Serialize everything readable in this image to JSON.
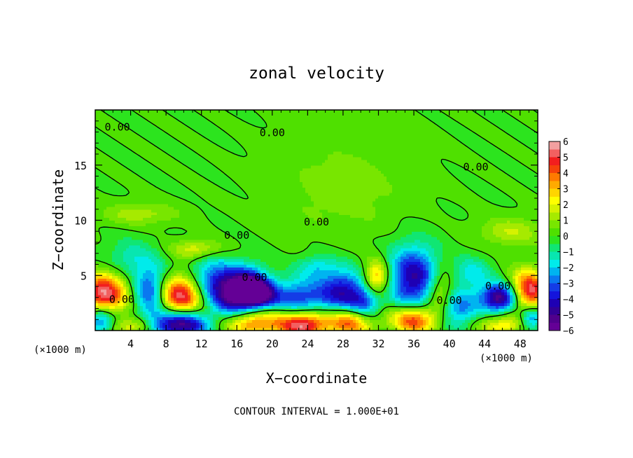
{
  "chart_data": {
    "type": "heatmap",
    "title": "zonal velocity",
    "xlabel": "X−coordinate",
    "ylabel": "Z−coordinate",
    "x_unit_left": "(×1000 m)",
    "x_unit_right": "(×1000 m)",
    "footer": "CONTOUR INTERVAL = 1.000E+01",
    "xlim": [
      0,
      50
    ],
    "ylim": [
      0,
      20
    ],
    "x_ticks": [
      4,
      8,
      12,
      16,
      20,
      24,
      28,
      32,
      36,
      40,
      44,
      48
    ],
    "x_tick_labels": [
      "4",
      "8",
      "12",
      "16",
      "20",
      "24",
      "28",
      "32",
      "36",
      "40",
      "44",
      "48"
    ],
    "y_ticks": [
      5,
      10,
      15
    ],
    "y_tick_labels": [
      "5",
      "10",
      "15"
    ],
    "colorbar": {
      "range": [
        -6,
        6
      ],
      "labels": [
        "6",
        "5",
        "4",
        "3",
        "2",
        "1",
        "0",
        "−1",
        "−2",
        "−3",
        "−4",
        "−5",
        "−6"
      ],
      "levels": [
        {
          "lo": 5.5,
          "hi": 6,
          "color": "#f2a0a0"
        },
        {
          "lo": 5,
          "hi": 5.5,
          "color": "#f26060"
        },
        {
          "lo": 4.5,
          "hi": 5,
          "color": "#f21e1e"
        },
        {
          "lo": 4,
          "hi": 4.5,
          "color": "#f5420a"
        },
        {
          "lo": 3.5,
          "hi": 4,
          "color": "#ff7a00"
        },
        {
          "lo": 3,
          "hi": 3.5,
          "color": "#ffaa00"
        },
        {
          "lo": 2.5,
          "hi": 3,
          "color": "#ffd500"
        },
        {
          "lo": 2,
          "hi": 2.5,
          "color": "#ffff00"
        },
        {
          "lo": 1.5,
          "hi": 2,
          "color": "#d6f200"
        },
        {
          "lo": 1,
          "hi": 1.5,
          "color": "#a6ea00"
        },
        {
          "lo": 0.5,
          "hi": 1,
          "color": "#78e600"
        },
        {
          "lo": 0,
          "hi": 0.5,
          "color": "#4fe000"
        },
        {
          "lo": -0.5,
          "hi": 0,
          "color": "#2ce41e"
        },
        {
          "lo": -1,
          "hi": -0.5,
          "color": "#10e673"
        },
        {
          "lo": -1.5,
          "hi": -1,
          "color": "#08e6b0"
        },
        {
          "lo": -2,
          "hi": -1.5,
          "color": "#00ebeb"
        },
        {
          "lo": -2.5,
          "hi": -2,
          "color": "#00b4f0"
        },
        {
          "lo": -3,
          "hi": -2.5,
          "color": "#0a78f0"
        },
        {
          "lo": -3.5,
          "hi": -3,
          "color": "#143ce6"
        },
        {
          "lo": -4,
          "hi": -3.5,
          "color": "#1414dc"
        },
        {
          "lo": -4.5,
          "hi": -4,
          "color": "#1e00b4"
        },
        {
          "lo": -5,
          "hi": -4.5,
          "color": "#320096"
        },
        {
          "lo": -5.5,
          "hi": -5,
          "color": "#50008c"
        },
        {
          "lo": -6,
          "hi": -5.5,
          "color": "#640096"
        }
      ]
    },
    "contour_label": "0.00",
    "contour_label_positions": [
      {
        "x": 2.5,
        "y": 18.4
      },
      {
        "x": 20,
        "y": 17.9
      },
      {
        "x": 43,
        "y": 14.8
      },
      {
        "x": 16,
        "y": 8.6
      },
      {
        "x": 25,
        "y": 9.8
      },
      {
        "x": 18,
        "y": 4.8
      },
      {
        "x": 3,
        "y": 2.8
      },
      {
        "x": 40,
        "y": 2.7
      },
      {
        "x": 45.5,
        "y": 4.0
      }
    ],
    "features": [
      {
        "x": 1.0,
        "y": 3.4,
        "value": 5.6,
        "sx": 1.8,
        "sy": 1.3
      },
      {
        "x": 6.4,
        "y": 3.5,
        "value": -4.2,
        "sx": 1.4,
        "sy": 1.6
      },
      {
        "x": 9.5,
        "y": 3.2,
        "value": 5.7,
        "sx": 2.0,
        "sy": 1.3
      },
      {
        "x": 13.0,
        "y": 4.6,
        "value": -2.6,
        "sx": 1.8,
        "sy": 1.5
      },
      {
        "x": 15.8,
        "y": 3.4,
        "value": -5.0,
        "sx": 2.0,
        "sy": 1.5
      },
      {
        "x": 17.5,
        "y": 3.8,
        "value": -4.2,
        "sx": 1.4,
        "sy": 1.2
      },
      {
        "x": 17.8,
        "y": 0.8,
        "value": 4.3,
        "sx": 2.2,
        "sy": 0.9
      },
      {
        "x": 23.0,
        "y": 3.0,
        "value": -3.4,
        "sx": 2.3,
        "sy": 1.2
      },
      {
        "x": 23.5,
        "y": 0.6,
        "value": 5.7,
        "sx": 2.0,
        "sy": 0.9
      },
      {
        "x": 19.0,
        "y": 3.3,
        "value": -3.0,
        "sx": 1.2,
        "sy": 0.9
      },
      {
        "x": 28.0,
        "y": 3.6,
        "value": -4.0,
        "sx": 1.8,
        "sy": 1.4
      },
      {
        "x": 28.8,
        "y": 0.8,
        "value": 4.2,
        "sx": 1.8,
        "sy": 0.9
      },
      {
        "x": 31.8,
        "y": 4.8,
        "value": 3.5,
        "sx": 1.0,
        "sy": 1.1
      },
      {
        "x": 30.5,
        "y": 2.5,
        "value": -2.8,
        "sx": 1.2,
        "sy": 1.0
      },
      {
        "x": 36.0,
        "y": 4.8,
        "value": -4.6,
        "sx": 2.0,
        "sy": 2.0
      },
      {
        "x": 36.0,
        "y": 1.0,
        "value": 4.8,
        "sx": 1.8,
        "sy": 0.9
      },
      {
        "x": 39.0,
        "y": 3.6,
        "value": 2.4,
        "sx": 1.1,
        "sy": 1.5
      },
      {
        "x": 41.0,
        "y": 2.0,
        "value": -2.8,
        "sx": 1.5,
        "sy": 1.2
      },
      {
        "x": 45.8,
        "y": 3.0,
        "value": -5.7,
        "sx": 1.6,
        "sy": 0.9
      },
      {
        "x": 46.0,
        "y": 0.5,
        "value": 2.6,
        "sx": 1.8,
        "sy": 0.7
      },
      {
        "x": 49.0,
        "y": 3.6,
        "value": 5.6,
        "sx": 1.5,
        "sy": 1.3
      },
      {
        "x": 49.3,
        "y": 1.2,
        "value": -3.5,
        "sx": 1.0,
        "sy": 0.8
      },
      {
        "x": 0.6,
        "y": 1.0,
        "value": -3.4,
        "sx": 1.1,
        "sy": 0.9
      },
      {
        "x": 9.5,
        "y": 0.6,
        "value": -5.7,
        "sx": 2.2,
        "sy": 0.9
      },
      {
        "x": 4.5,
        "y": 0.4,
        "value": 2.4,
        "sx": 1.5,
        "sy": 0.6
      },
      {
        "x": 11.5,
        "y": 7.4,
        "value": 2.0,
        "sx": 2.0,
        "sy": 0.6
      },
      {
        "x": 5.0,
        "y": 10.6,
        "value": 1.3,
        "sx": 3.0,
        "sy": 0.7
      },
      {
        "x": 47.0,
        "y": 9.0,
        "value": 1.5,
        "sx": 2.5,
        "sy": 0.9
      },
      {
        "x": 28.0,
        "y": 13.0,
        "value": 0.8,
        "sx": 5.0,
        "sy": 3.0
      },
      {
        "x": 4.0,
        "y": 6.5,
        "value": -1.4,
        "sx": 2.0,
        "sy": 1.2
      },
      {
        "x": 25.0,
        "y": 5.8,
        "value": -1.6,
        "sx": 1.5,
        "sy": 0.8
      },
      {
        "x": 42.5,
        "y": 5.2,
        "value": -1.8,
        "sx": 1.5,
        "sy": 1.0
      }
    ]
  }
}
